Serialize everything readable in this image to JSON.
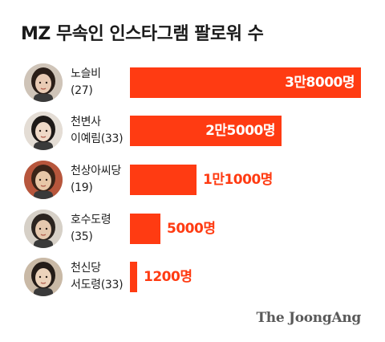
{
  "title": "MZ 무속인 인스타그램 팔로워 수",
  "brand": "The JoongAng",
  "chart_data": {
    "type": "bar",
    "orientation": "horizontal",
    "title": "MZ 무속인 인스타그램 팔로워 수",
    "categories": [
      {
        "line1": "노슬비",
        "line2": "(27)"
      },
      {
        "line1": "천변사",
        "line2": "이예림(33)"
      },
      {
        "line1": "천상아씨당",
        "line2": "(19)"
      },
      {
        "line1": "호수도령",
        "line2": "(35)"
      },
      {
        "line1": "천신당",
        "line2": "서도령(33)"
      }
    ],
    "values": [
      38000,
      25000,
      11000,
      5000,
      1200
    ],
    "value_labels": [
      "3만8000명",
      "2만5000명",
      "1만1000명",
      "5000명",
      "1200명"
    ],
    "xlim": [
      0,
      38000
    ],
    "bar_color": "#ff3b12",
    "grid": false,
    "legend": "none"
  },
  "avatars": [
    {
      "icon": "person-photo",
      "bg": "#cfc4b8",
      "hair": "#2a1e18",
      "skin": "#e9cbb4"
    },
    {
      "icon": "person-photo",
      "bg": "#e4ddd5",
      "hair": "#1e1a18",
      "skin": "#efd9c7"
    },
    {
      "icon": "person-photo",
      "bg": "#b7563c",
      "hair": "#3a2418",
      "skin": "#e8c7a7"
    },
    {
      "icon": "person-photo",
      "bg": "#d6d0c7",
      "hair": "#2b2420",
      "skin": "#e6c8ae"
    },
    {
      "icon": "person-photo",
      "bg": "#c9b9a6",
      "hair": "#241c18",
      "skin": "#ecd3bb"
    }
  ]
}
